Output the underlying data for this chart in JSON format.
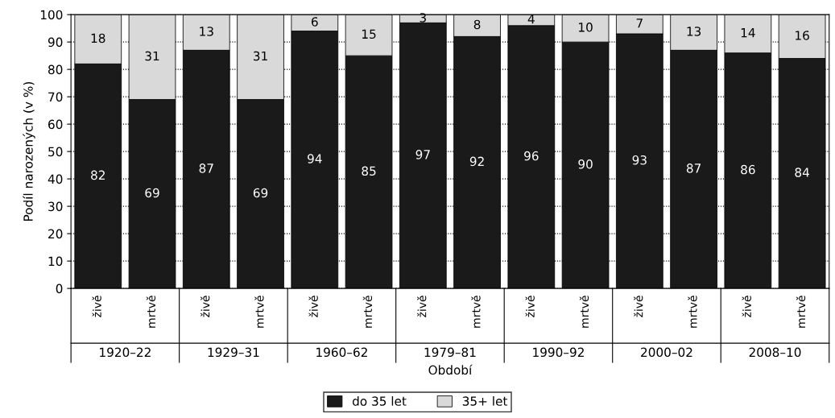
{
  "chart_data": {
    "type": "bar",
    "stacked": true,
    "xlabel": "Období",
    "ylabel": "Podíl narozených (v %)",
    "categories": [
      "živě",
      "mrtvě",
      "živě",
      "mrtvě",
      "živě",
      "mrtvě",
      "živě",
      "mrtvě",
      "živě",
      "mrtvě",
      "živě",
      "mrtvě",
      "živě",
      "mrtvě"
    ],
    "series": [
      {
        "name": "do 35 let",
        "color": "#1a1a1a",
        "values": [
          82,
          69,
          87,
          69,
          94,
          85,
          97,
          92,
          96,
          90,
          93,
          87,
          86,
          84
        ]
      },
      {
        "name": "35+ let",
        "color": "#d9d9d9",
        "values": [
          18,
          31,
          13,
          31,
          6,
          15,
          3,
          8,
          4,
          10,
          7,
          13,
          14,
          16
        ]
      }
    ],
    "annotations": [
      "1920–22",
      "1929–31",
      "1960–62",
      "1979–81",
      "1990–92",
      "2000–02",
      "2008–10"
    ],
    "ylim": [
      0,
      100
    ],
    "yticks": [
      0,
      10,
      20,
      30,
      40,
      50,
      60,
      70,
      80,
      90,
      100
    ],
    "grid": "y",
    "legend": "bottom",
    "data_labels": true
  }
}
